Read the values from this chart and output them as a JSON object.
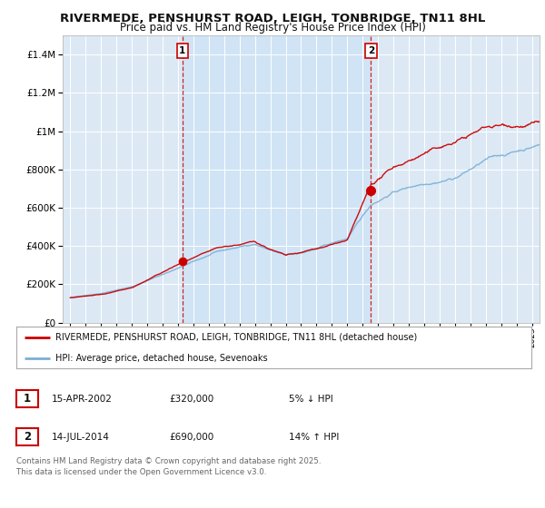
{
  "title1": "RIVERMEDE, PENSHURST ROAD, LEIGH, TONBRIDGE, TN11 8HL",
  "title2": "Price paid vs. HM Land Registry's House Price Index (HPI)",
  "legend_line1": "RIVERMEDE, PENSHURST ROAD, LEIGH, TONBRIDGE, TN11 8HL (detached house)",
  "legend_line2": "HPI: Average price, detached house, Sevenoaks",
  "footnote": "Contains HM Land Registry data © Crown copyright and database right 2025.\nThis data is licensed under the Open Government Licence v3.0.",
  "sale1_label": "1",
  "sale1_date": "15-APR-2002",
  "sale1_price": "£320,000",
  "sale1_hpi": "5% ↓ HPI",
  "sale2_label": "2",
  "sale2_date": "14-JUL-2014",
  "sale2_price": "£690,000",
  "sale2_hpi": "14% ↑ HPI",
  "sale1_year": 2002.29,
  "sale1_value": 320000,
  "sale2_year": 2014.54,
  "sale2_value": 690000,
  "vline1_x": 2002.29,
  "vline2_x": 2014.54,
  "ylim": [
    0,
    1500000
  ],
  "xlim": [
    1994.5,
    2025.5
  ],
  "red_color": "#cc0000",
  "blue_color": "#7aafd4",
  "shade_color": "#d0e4f5",
  "bg_color": "#dce9f5",
  "grid_color": "#ffffff",
  "vline_color": "#cc0000",
  "title_fontsize": 9.5,
  "subtitle_fontsize": 8.5
}
